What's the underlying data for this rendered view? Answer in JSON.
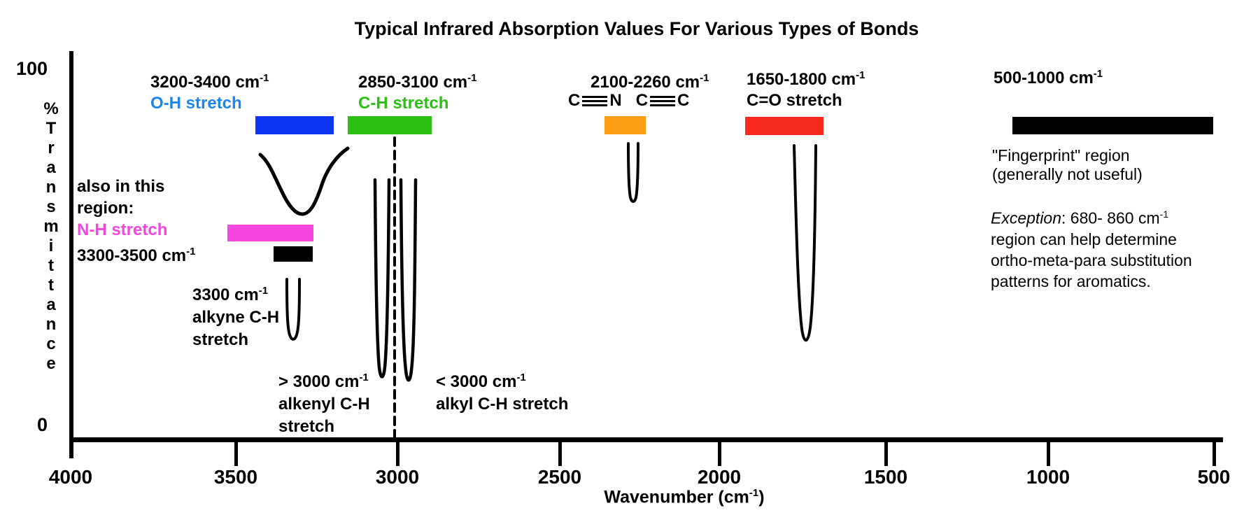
{
  "title": "Typical Infrared Absorption Values For Various Types of Bonds",
  "y_axis": {
    "max_label": "100",
    "min_label": "0",
    "label": "%Transmittance"
  },
  "x_axis": {
    "ticks": [
      "4000",
      "3500",
      "3000",
      "2500",
      "2000",
      "1500",
      "1000",
      "500"
    ],
    "label_prefix": "Wavenumber (cm",
    "label_sup": "-1",
    "label_suffix": ")"
  },
  "regions": {
    "oh": {
      "range": "3200-3400 cm",
      "range_sup": "-1",
      "label": "O-H stretch",
      "bar_color": "#0E35F2",
      "label_color": "#1C86EE"
    },
    "ch": {
      "range": "2850-3100 cm",
      "range_sup": "-1",
      "label": "C-H stretch",
      "bar_color": "#2BBF13",
      "label_color": "#2BBF13"
    },
    "triple_bond": {
      "range": "2100-2260 cm",
      "range_sup": "-1",
      "atom1": "C",
      "atom2": "N",
      "atom3": "C",
      "atom4": "C",
      "bar_color": "#FB9E13"
    },
    "co": {
      "range": "1650-1800 cm",
      "range_sup": "-1",
      "label": "C=O stretch",
      "bar_color": "#F5291C"
    },
    "fingerprint": {
      "range": "500-1000 cm",
      "range_sup": "-1",
      "bar_color": "#000000"
    }
  },
  "also_region": {
    "line1": "also in this",
    "line2": "region:",
    "nh_label": "N-H stretch",
    "nh_color": "#F646E0",
    "range": "3300-3500 cm",
    "range_sup": "-1"
  },
  "alkyne": {
    "value": "3300 cm",
    "value_sup": "-1",
    "line2": "alkyne C-H",
    "line3": "stretch"
  },
  "alkenyl": {
    "value": "> 3000 cm",
    "value_sup": "-1",
    "line2": "alkenyl C-H",
    "line3": "stretch"
  },
  "alkyl": {
    "value": "< 3000 cm",
    "value_sup": "-1",
    "line2": "alkyl C-H stretch"
  },
  "fingerprint_note": {
    "line1": "\"Fingerprint\" region",
    "line2": "(generally not useful)"
  },
  "exception_note": {
    "intro": "Exception",
    "line1_rest": ": 680- 860 cm",
    "line1_sup": "-1",
    "line2": "region can help determine",
    "line3": "ortho-meta-para substitution",
    "line4": "patterns for aromatics."
  },
  "chart_data": {
    "type": "bar",
    "variant": "ir-spectrum-region-diagram",
    "title": "Typical Infrared Absorption Values For Various Types of Bonds",
    "xlabel": "Wavenumber (cm-1)",
    "ylabel": "% Transmittance",
    "x_ticks": [
      4000,
      3500,
      3000,
      2500,
      2000,
      1500,
      1000,
      500
    ],
    "x_axis_reversed": true,
    "ylim": [
      0,
      100
    ],
    "grid": false,
    "regions": [
      {
        "name": "O-H stretch",
        "range_cm1": [
          3200,
          3400
        ],
        "color": "#0E35F2"
      },
      {
        "name": "N-H stretch",
        "range_cm1": [
          3300,
          3500
        ],
        "color": "#F646E0",
        "note": "also in this region"
      },
      {
        "name": "C-H stretch",
        "range_cm1": [
          2850,
          3100
        ],
        "color": "#2BBF13"
      },
      {
        "name": "alkyne C-H stretch",
        "at_cm1": 3300,
        "color": "#000000"
      },
      {
        "name": "alkenyl C-H stretch",
        "note": "> 3000 cm-1"
      },
      {
        "name": "alkyl C-H stretch",
        "note": "< 3000 cm-1"
      },
      {
        "name": "C≡N and C≡C stretch",
        "range_cm1": [
          2100,
          2260
        ],
        "color": "#FB9E13"
      },
      {
        "name": "C=O stretch",
        "range_cm1": [
          1650,
          1800
        ],
        "color": "#F5291C"
      },
      {
        "name": "Fingerprint region",
        "range_cm1": [
          500,
          1000
        ],
        "color": "#000000",
        "note": "generally not useful; exception: 680-860 cm-1 region can help determine ortho-meta-para substitution patterns for aromatics"
      }
    ],
    "absorption_dips": [
      {
        "name": "O-H broad dip",
        "center_cm1": 3300,
        "min_transmittance_pct": 60,
        "shape": "broad"
      },
      {
        "name": "alkyne C-H dip",
        "center_cm1": 3300,
        "min_transmittance_pct": 26,
        "shape": "narrow"
      },
      {
        "name": "alkenyl C-H dip",
        "center_cm1": 3050,
        "min_transmittance_pct": 15,
        "shape": "narrow-deep"
      },
      {
        "name": "alkyl C-H dip",
        "center_cm1": 2950,
        "min_transmittance_pct": 14,
        "shape": "narrow-deep"
      },
      {
        "name": "triple-bond dip",
        "center_cm1": 2250,
        "min_transmittance_pct": 63,
        "shape": "narrow"
      },
      {
        "name": "C=O dip",
        "center_cm1": 1740,
        "min_transmittance_pct": 25,
        "shape": "narrow-deep"
      }
    ],
    "reference_line_cm1": 3000
  }
}
